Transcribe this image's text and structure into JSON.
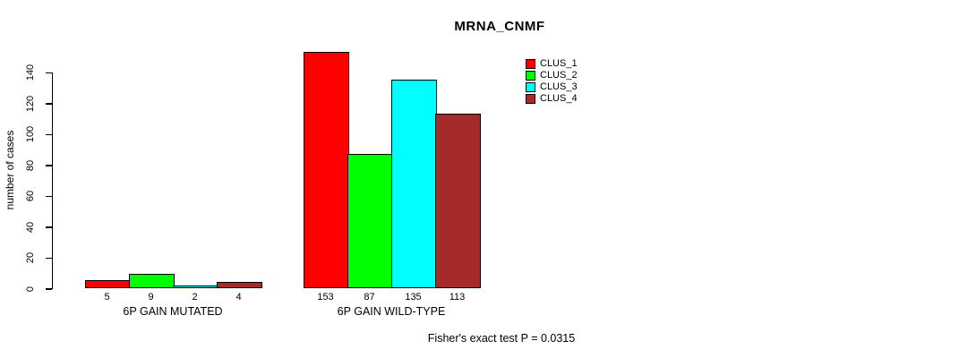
{
  "chart_data": {
    "type": "bar",
    "title": "MRNA_CNMF",
    "ylabel": "number of cases",
    "xlabel": "",
    "ylim": [
      0,
      140
    ],
    "yticks": [
      0,
      20,
      40,
      60,
      80,
      100,
      120,
      140
    ],
    "grid": false,
    "categories": [
      "6P GAIN MUTATED",
      "6P GAIN WILD-TYPE"
    ],
    "series": [
      {
        "name": "CLUS_1",
        "color": "#FF0000",
        "values": [
          5,
          153
        ]
      },
      {
        "name": "CLUS_2",
        "color": "#00FF00",
        "values": [
          9,
          87
        ]
      },
      {
        "name": "CLUS_3",
        "color": "#00FFFF",
        "values": [
          2,
          135
        ]
      },
      {
        "name": "CLUS_4",
        "color": "#A52A2A",
        "values": [
          4,
          113
        ]
      }
    ],
    "bar_value_labels": [
      [
        "5",
        "9",
        "2",
        "4"
      ],
      [
        "153",
        "87",
        "135",
        "113"
      ]
    ],
    "legend_position": "top-right",
    "annotation": "Fisher's exact test P = 0.0315"
  }
}
